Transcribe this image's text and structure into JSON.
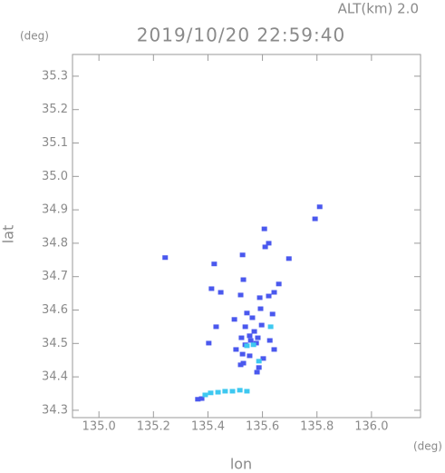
{
  "chart_data": {
    "type": "scatter",
    "altitude_label": "ALT(km) 2.0",
    "title": "2019/10/20 22:59:40",
    "y_unit": "(deg)",
    "x_unit": "(deg)",
    "x_label": "lon",
    "y_label": "lat",
    "xlim": [
      134.903,
      136.18
    ],
    "ylim": [
      34.278,
      35.365
    ],
    "xticks": [
      {
        "value": 135,
        "label": "135.0"
      },
      135.2,
      135.4,
      135.6,
      135.8,
      {
        "value": 136,
        "label": "136.0"
      }
    ],
    "yticks": [
      34.3,
      34.4,
      34.5,
      34.6,
      34.7,
      34.8,
      34.9,
      {
        "value": 35,
        "label": "35.0"
      },
      35.1,
      35.2,
      35.3
    ],
    "grid": false,
    "series": [
      {
        "color": "#4a58ee",
        "x": [
          135.243,
          135.793,
          135.81,
          135.423,
          135.527,
          135.607,
          135.623,
          135.61,
          135.697,
          135.53,
          135.52,
          135.447,
          135.413,
          135.59,
          135.623,
          135.66,
          135.643,
          135.637,
          135.593,
          135.563,
          135.543,
          135.497,
          135.43,
          135.403,
          135.537,
          135.553,
          135.577,
          135.537,
          135.527,
          135.603,
          135.643,
          135.627,
          135.597,
          135.57,
          135.53,
          135.587,
          135.58,
          135.52,
          135.553,
          135.363,
          135.377,
          135.557,
          135.583,
          135.523,
          135.503
        ],
        "y": [
          34.757,
          34.873,
          34.909,
          34.738,
          34.765,
          34.843,
          34.8,
          34.789,
          34.754,
          34.691,
          34.645,
          34.653,
          34.664,
          34.637,
          34.642,
          34.678,
          34.653,
          34.588,
          34.604,
          34.577,
          34.591,
          34.572,
          34.55,
          34.501,
          34.55,
          34.523,
          34.501,
          34.496,
          34.468,
          34.455,
          34.482,
          34.509,
          34.555,
          34.536,
          34.441,
          34.428,
          34.414,
          34.436,
          34.463,
          34.333,
          34.335,
          34.509,
          34.517,
          34.517,
          34.482
        ]
      },
      {
        "color": "#3ec8f0",
        "x": [
          135.567,
          135.543,
          135.63,
          135.587,
          135.39,
          135.41,
          135.437,
          135.463,
          135.49,
          135.517,
          135.543
        ],
        "y": [
          34.496,
          34.493,
          34.55,
          34.447,
          34.346,
          34.352,
          34.354,
          34.357,
          34.357,
          34.36,
          34.357
        ]
      }
    ]
  }
}
